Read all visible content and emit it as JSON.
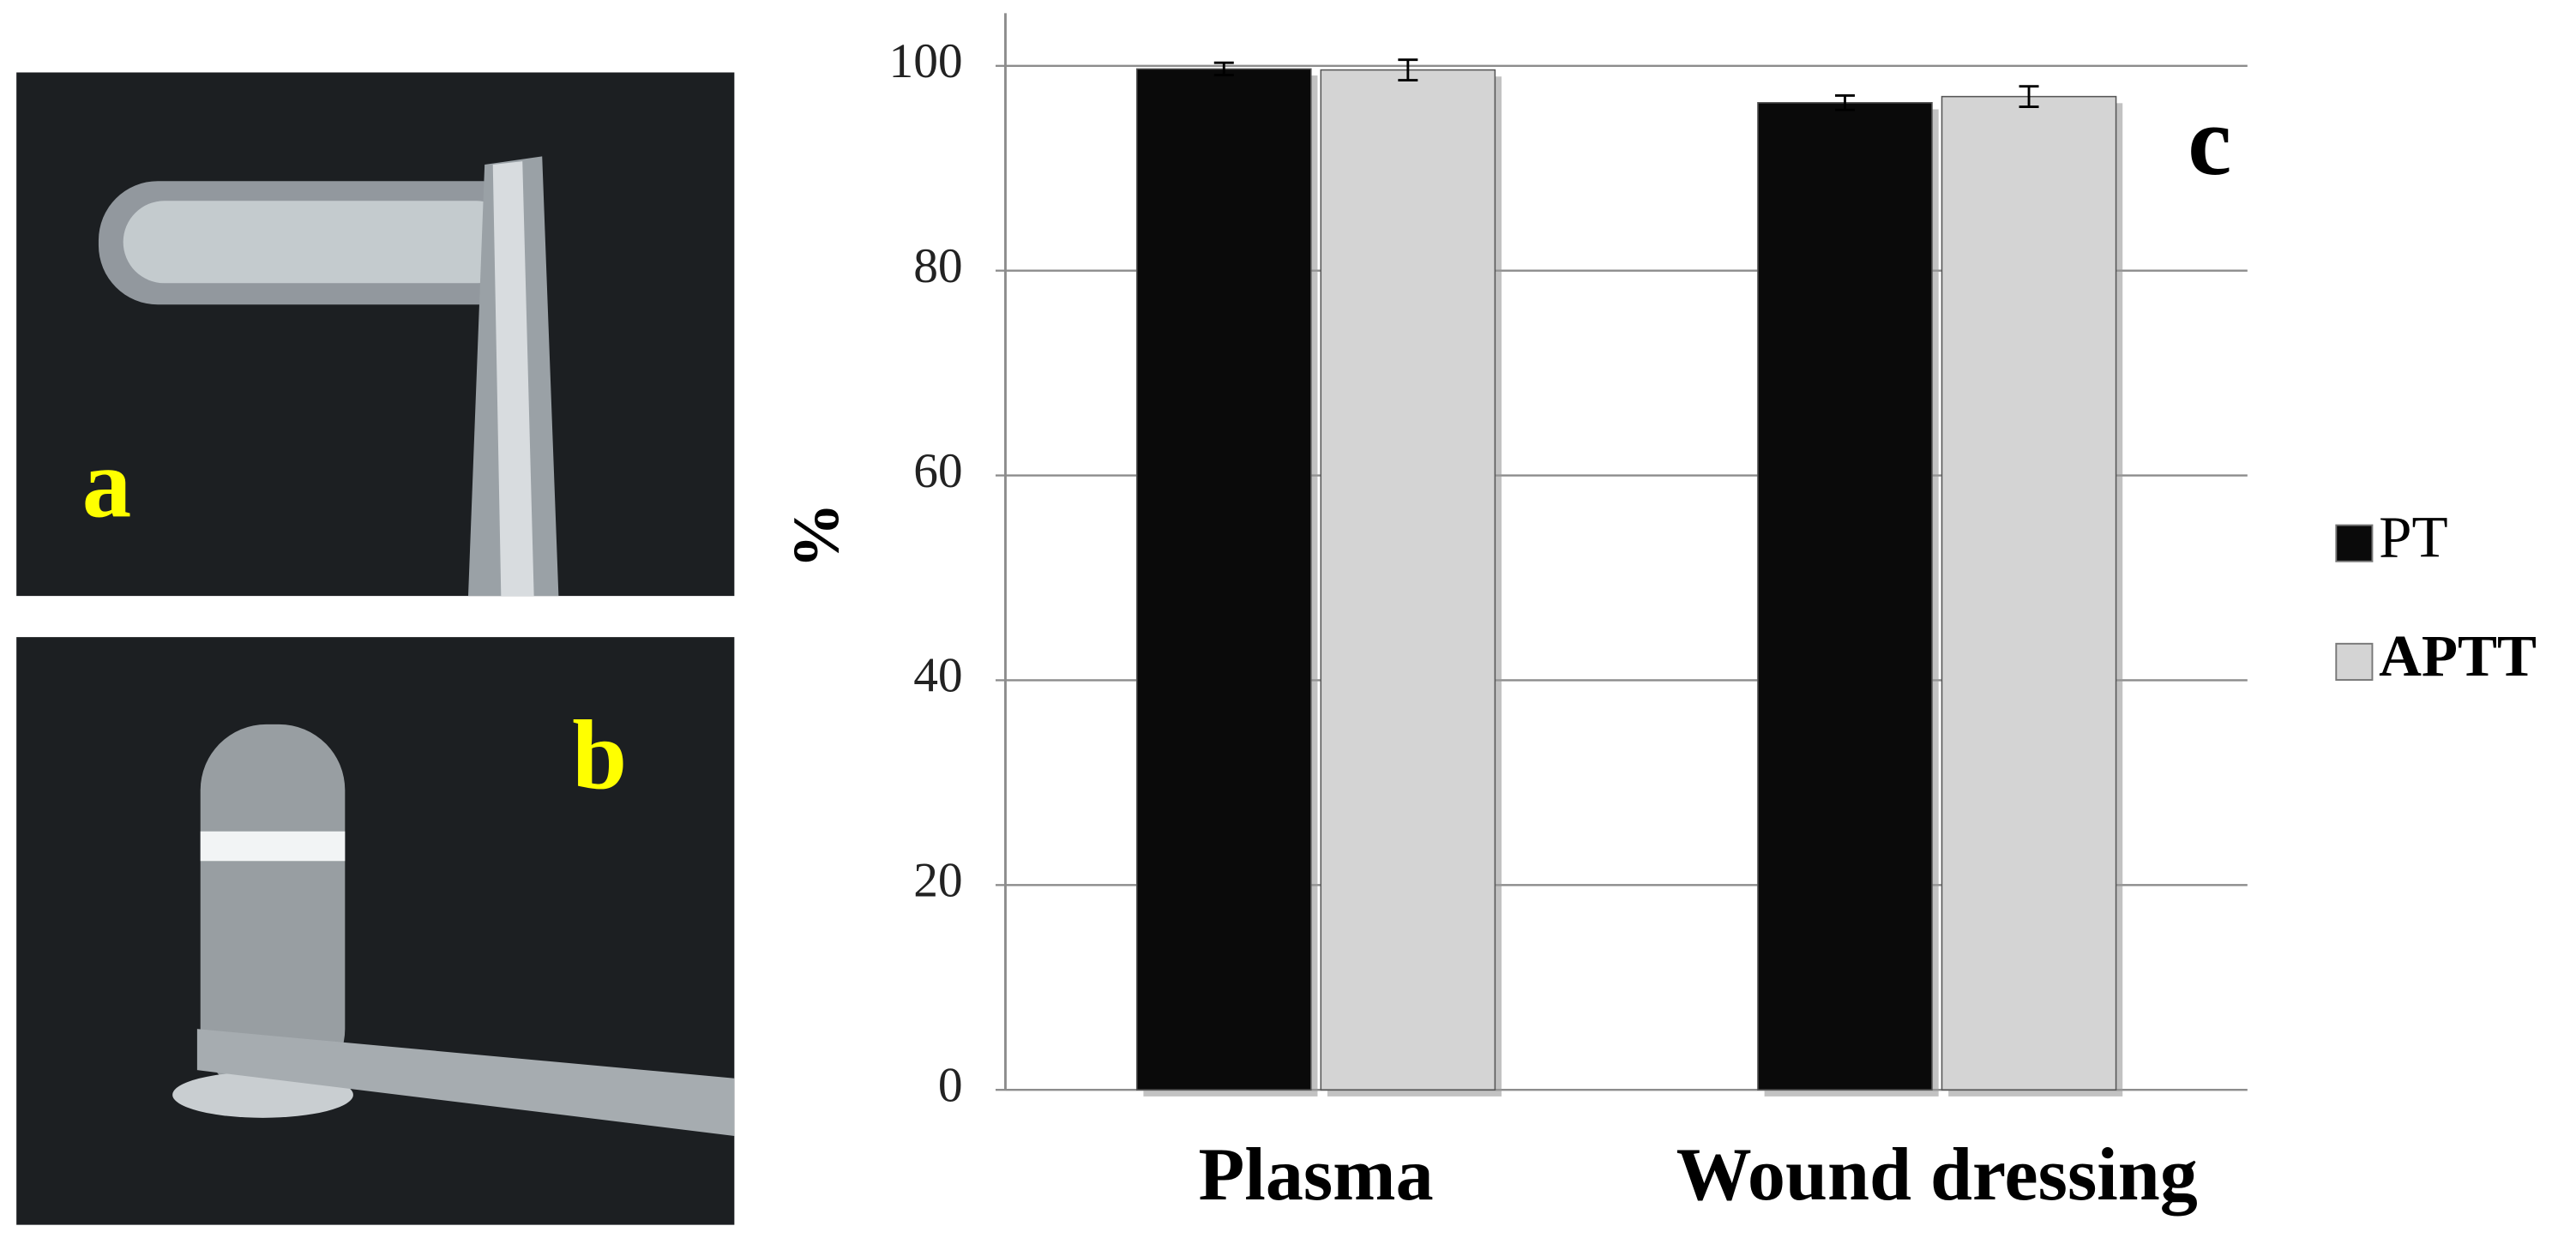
{
  "panels": [
    {
      "label": "a"
    },
    {
      "label": "b"
    }
  ],
  "chart_data": {
    "type": "bar",
    "panel_label": "c",
    "y_label": "%",
    "categories": [
      "Plasma",
      "Wound dressing"
    ],
    "series": [
      {
        "name": "PT",
        "color": "#0a0a0a",
        "values": [
          99.7,
          96.4
        ],
        "errors": [
          0.6,
          0.7
        ]
      },
      {
        "name": "APTT",
        "color": "#d4d4d4",
        "values": [
          99.6,
          97.0
        ],
        "errors": [
          1.0,
          1.0
        ]
      }
    ],
    "ylim": [
      0,
      100
    ],
    "yticks": [
      0,
      20,
      40,
      60,
      80,
      100
    ],
    "grid": true,
    "legend": "right"
  }
}
